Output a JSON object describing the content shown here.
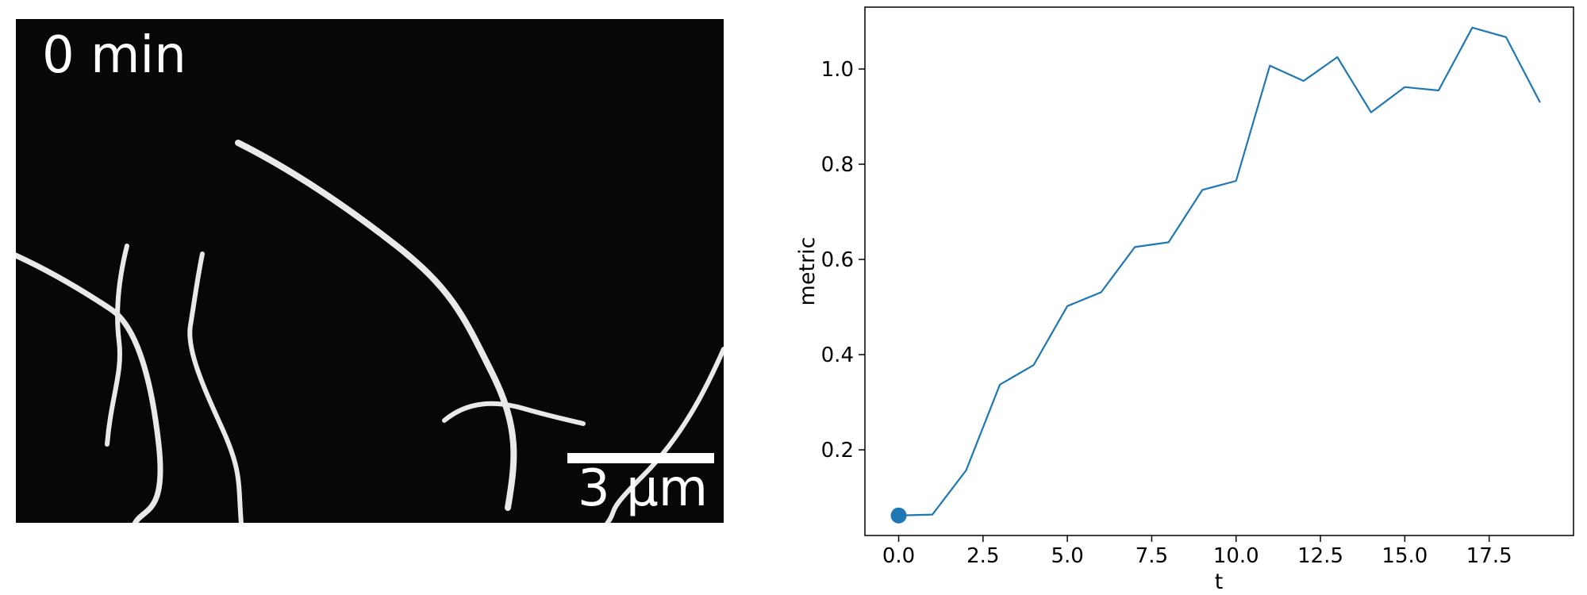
{
  "micrograph": {
    "time_label": "0 min",
    "scale_label": "3 μm",
    "colors": {
      "background": "#070707",
      "filament": "#e9e9e9",
      "text": "#ffffff"
    }
  },
  "chart_data": {
    "type": "line",
    "title": "",
    "xlabel": "t",
    "ylabel": "metric",
    "xlim": [
      -1.0,
      20.0
    ],
    "ylim": [
      0.02,
      1.13
    ],
    "grid": false,
    "x_ticks": [
      0.0,
      2.5,
      5.0,
      7.5,
      10.0,
      12.5,
      15.0,
      17.5
    ],
    "x_tick_labels": [
      "0.0",
      "2.5",
      "5.0",
      "7.5",
      "10.0",
      "12.5",
      "15.0",
      "17.5"
    ],
    "y_ticks": [
      0.2,
      0.4,
      0.6,
      0.8,
      1.0
    ],
    "y_tick_labels": [
      "0.2",
      "0.4",
      "0.6",
      "0.8",
      "1.0"
    ],
    "series": [
      {
        "color": "#1f77b4",
        "x": [
          0,
          1,
          2,
          3,
          4,
          5,
          6,
          7,
          8,
          9,
          10,
          11,
          12,
          13,
          14,
          15,
          16,
          17,
          18,
          19
        ],
        "values": [
          0.062,
          0.064,
          0.157,
          0.337,
          0.378,
          0.502,
          0.531,
          0.626,
          0.636,
          0.746,
          0.765,
          1.007,
          0.975,
          1.025,
          0.909,
          0.962,
          0.955,
          1.087,
          1.067,
          0.931
        ]
      }
    ],
    "highlight_point": {
      "x": 0,
      "y": 0.062,
      "color": "#1f77b4"
    }
  }
}
